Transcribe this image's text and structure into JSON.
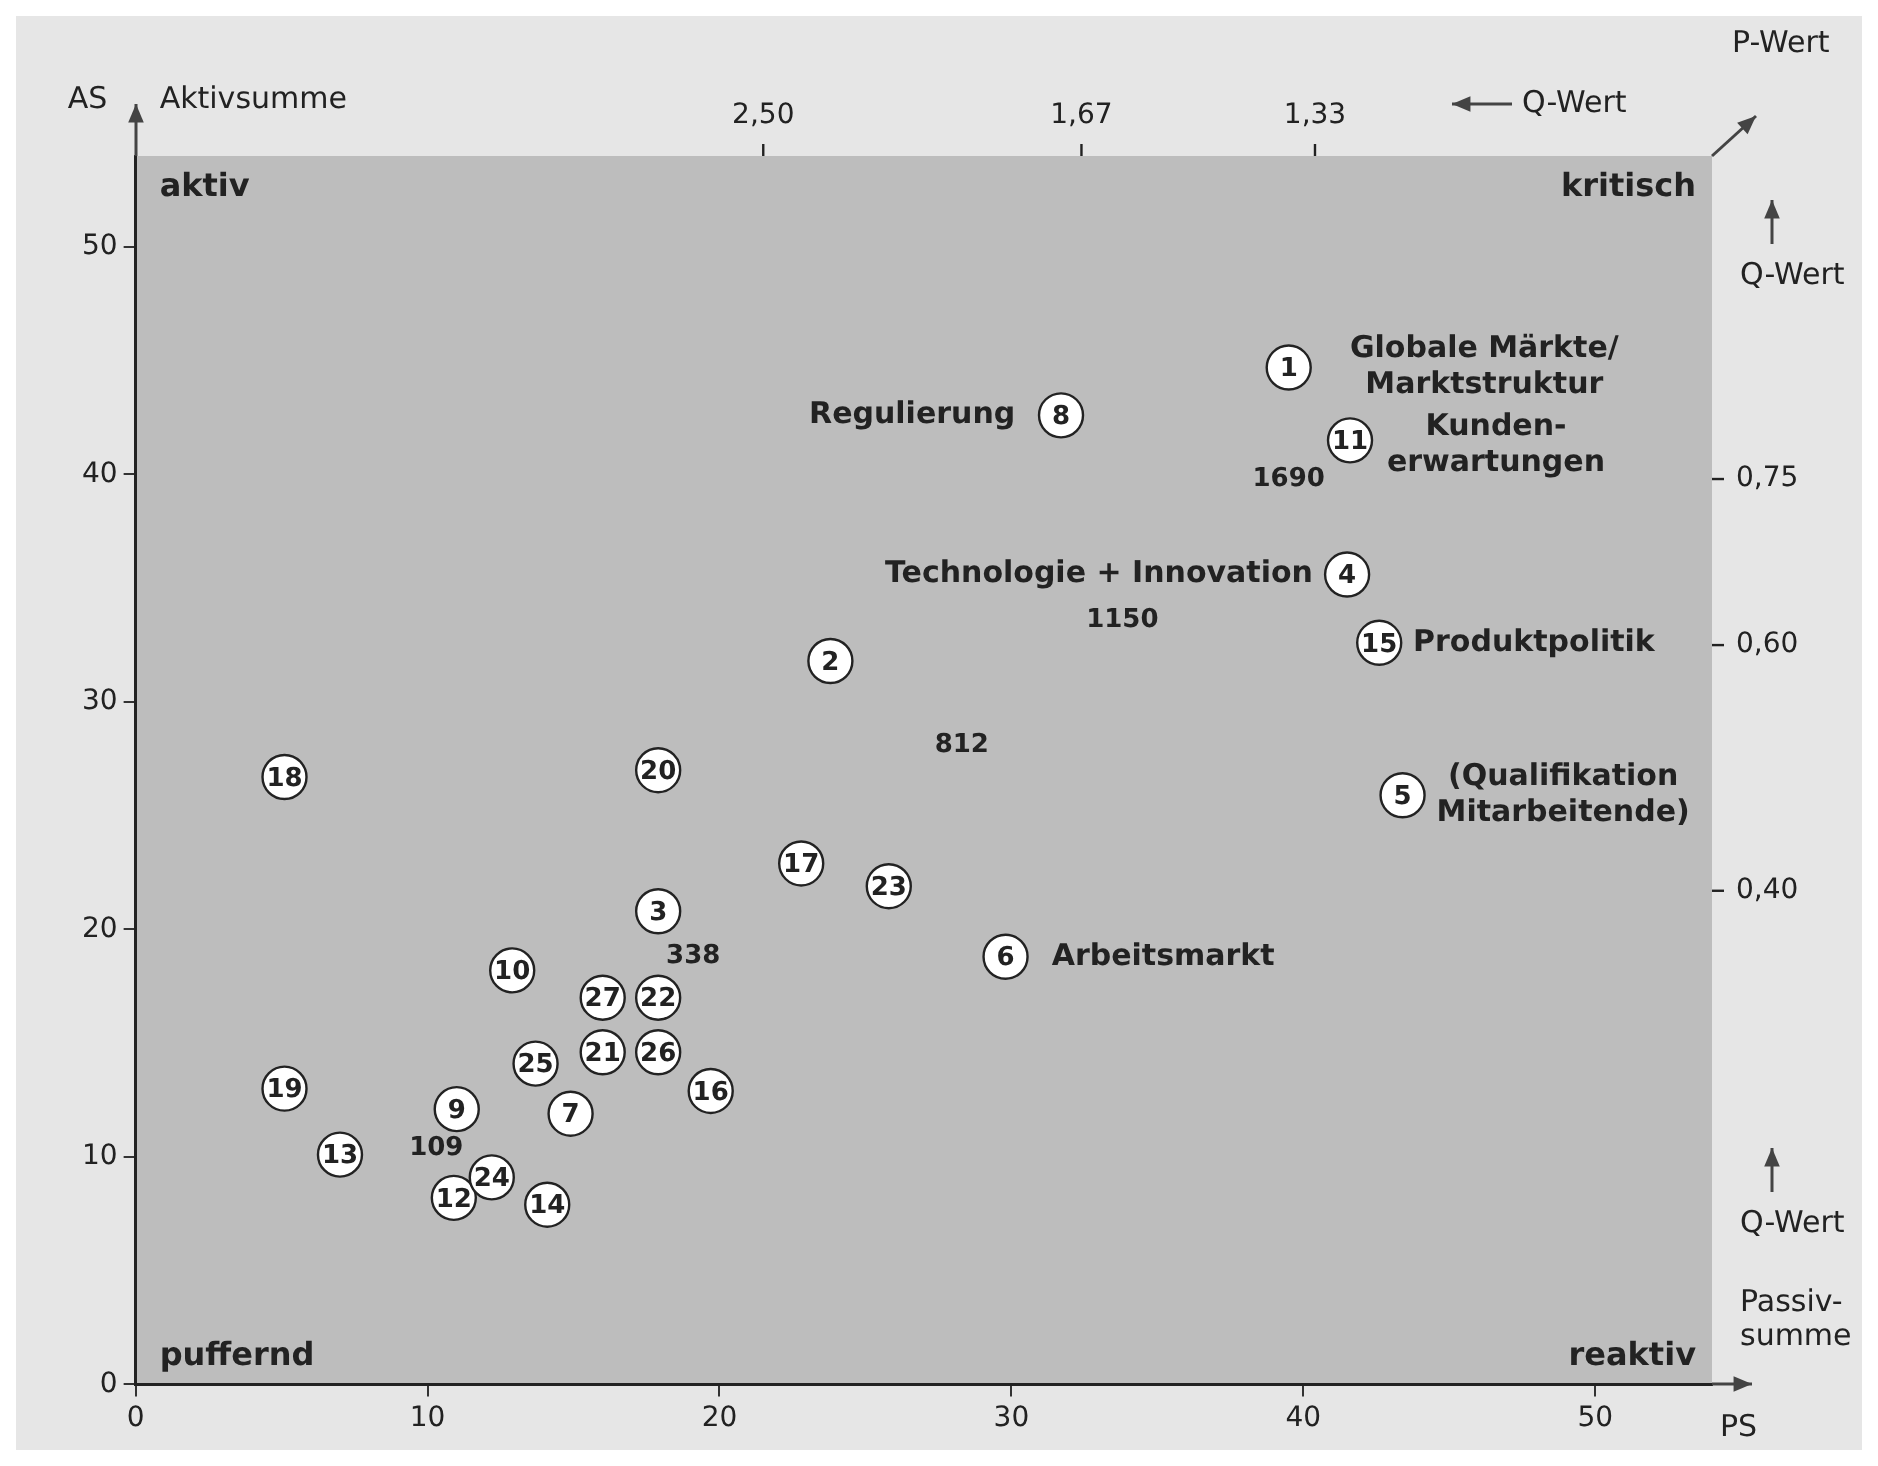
{
  "chart_data": {
    "type": "scatter",
    "xlabel": "Passiv-\nsumme",
    "ylabel": "Aktivsumme",
    "x2label": "Q-Wert",
    "y2label": "Q-Wert",
    "xlim": [
      0,
      54
    ],
    "ylim": [
      0,
      54
    ],
    "xticks": [
      0,
      10,
      20,
      30,
      40,
      50
    ],
    "yticks": [
      0,
      10,
      20,
      30,
      40,
      50
    ],
    "grid": false,
    "marker": "circle",
    "color": "#ffffff",
    "x": [
      39.5,
      23.8,
      17.9,
      41.5,
      43.4,
      29.8,
      14.9,
      31.7,
      11.0,
      12.9,
      41.6,
      10.9,
      7.0,
      14.1,
      42.6,
      19.7,
      22.8,
      5.1,
      5.1,
      17.9,
      16.0,
      17.9,
      25.8,
      12.2,
      13.7,
      17.9,
      16.0
    ],
    "values": [
      44.7,
      31.8,
      20.8,
      35.6,
      25.9,
      18.8,
      11.9,
      42.6,
      12.1,
      18.2,
      41.5,
      8.2,
      10.1,
      7.9,
      32.6,
      12.9,
      22.9,
      26.7,
      13.0,
      27.0,
      14.6,
      17.0,
      21.9,
      9.1,
      14.1,
      14.6,
      17.0
    ],
    "annotations": [
      "AS",
      "PS",
      "P-Wert",
      "Q-Wert",
      "aktiv",
      "kritisch",
      "puffernd",
      "reaktiv",
      "2,50",
      "1,67",
      "1,33",
      "0,75",
      "0,60",
      "0,40",
      "Globale Märkte/\nMarktstruktur",
      "Kunden-\nerwartungen",
      "Regulierung",
      "Technologie + Innovation",
      "Produktpolitik",
      "(Qualifikation\nMitarbeitende)",
      "Arbeitsmarkt",
      "1690",
      "1150",
      "812",
      "338",
      "109",
      {
        "text": "1",
        "x": 39.5,
        "y": 44.7
      },
      {
        "text": "2",
        "x": 23.8,
        "y": 31.8
      },
      {
        "text": "3",
        "x": 17.9,
        "y": 20.8
      },
      {
        "text": "4",
        "x": 41.5,
        "y": 35.6
      },
      {
        "text": "5",
        "x": 43.4,
        "y": 25.9
      },
      {
        "text": "6",
        "x": 29.8,
        "y": 18.8
      },
      {
        "text": "7",
        "x": 14.9,
        "y": 11.9
      },
      {
        "text": "8",
        "x": 31.7,
        "y": 42.6
      },
      {
        "text": "9",
        "x": 11.0,
        "y": 12.1
      },
      {
        "text": "10",
        "x": 12.9,
        "y": 18.2
      },
      {
        "text": "11",
        "x": 41.6,
        "y": 41.5
      },
      {
        "text": "12",
        "x": 10.9,
        "y": 8.2
      },
      {
        "text": "13",
        "x": 7.0,
        "y": 10.1
      },
      {
        "text": "14",
        "x": 14.1,
        "y": 7.9
      },
      {
        "text": "15",
        "x": 42.6,
        "y": 32.6
      },
      {
        "text": "16",
        "x": 19.7,
        "y": 12.9
      },
      {
        "text": "17",
        "x": 22.8,
        "y": 22.9
      },
      {
        "text": "18",
        "x": 5.1,
        "y": 26.7
      },
      {
        "text": "19",
        "x": 5.1,
        "y": 13.0
      },
      {
        "text": "20",
        "x": 17.9,
        "y": 27.0
      },
      {
        "text": "21",
        "x": 16.0,
        "y": 14.6
      },
      {
        "text": "22",
        "x": 17.9,
        "y": 17.0
      },
      {
        "text": "23",
        "x": 25.8,
        "y": 21.9
      },
      {
        "text": "24",
        "x": 12.2,
        "y": 9.1
      },
      {
        "text": "25",
        "x": 13.7,
        "y": 14.1
      },
      {
        "text": "26",
        "x": 17.9,
        "y": 14.6
      },
      {
        "text": "27",
        "x": 16.0,
        "y": 17.0
      }
    ]
  }
}
